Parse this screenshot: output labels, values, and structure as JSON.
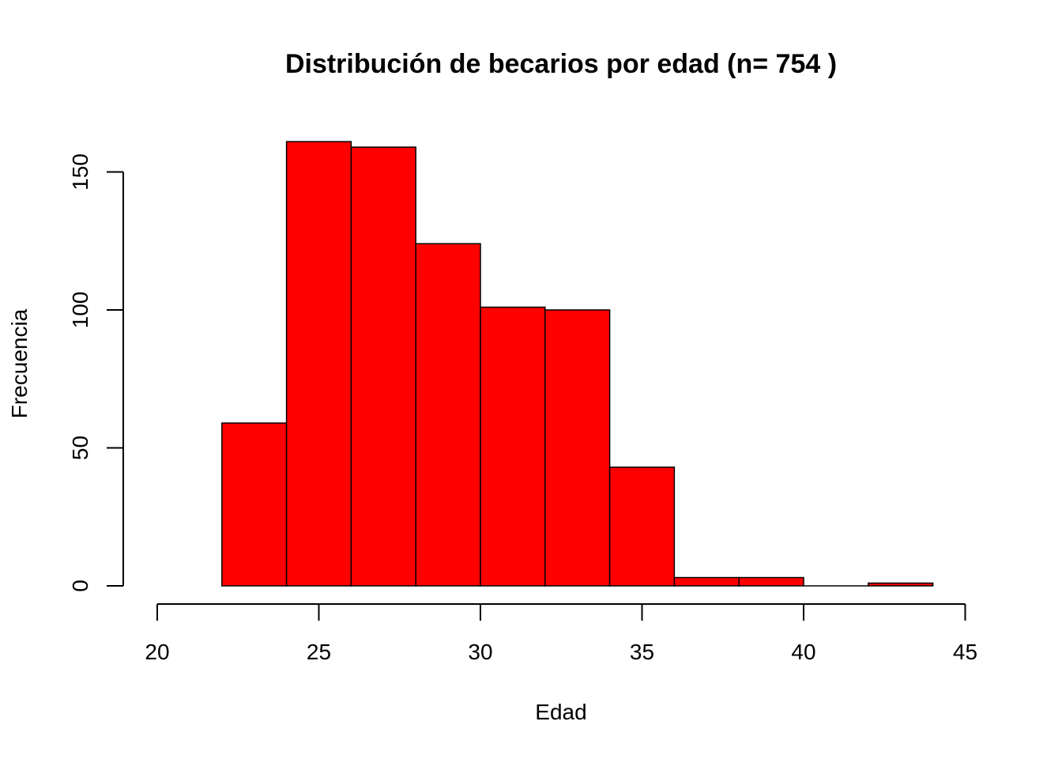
{
  "chart_data": {
    "type": "bar",
    "title": "Distribución de becarios por edad (n= 754 )",
    "xlabel": "Edad",
    "ylabel": "Frecuencia",
    "bins": [
      {
        "from": 22,
        "to": 24,
        "count": 59
      },
      {
        "from": 24,
        "to": 26,
        "count": 161
      },
      {
        "from": 26,
        "to": 28,
        "count": 159
      },
      {
        "from": 28,
        "to": 30,
        "count": 124
      },
      {
        "from": 30,
        "to": 32,
        "count": 101
      },
      {
        "from": 32,
        "to": 34,
        "count": 100
      },
      {
        "from": 34,
        "to": 36,
        "count": 43
      },
      {
        "from": 36,
        "to": 38,
        "count": 3
      },
      {
        "from": 38,
        "to": 40,
        "count": 3
      },
      {
        "from": 40,
        "to": 42,
        "count": 0
      },
      {
        "from": 42,
        "to": 44,
        "count": 1
      }
    ],
    "xlim": [
      20,
      45
    ],
    "ylim": [
      0,
      161
    ],
    "x_ticks": [
      20,
      25,
      30,
      35,
      40,
      45
    ],
    "y_ticks": [
      0,
      50,
      100,
      150
    ],
    "bar_color": "#FF0000",
    "grid": false,
    "legend": "none"
  }
}
